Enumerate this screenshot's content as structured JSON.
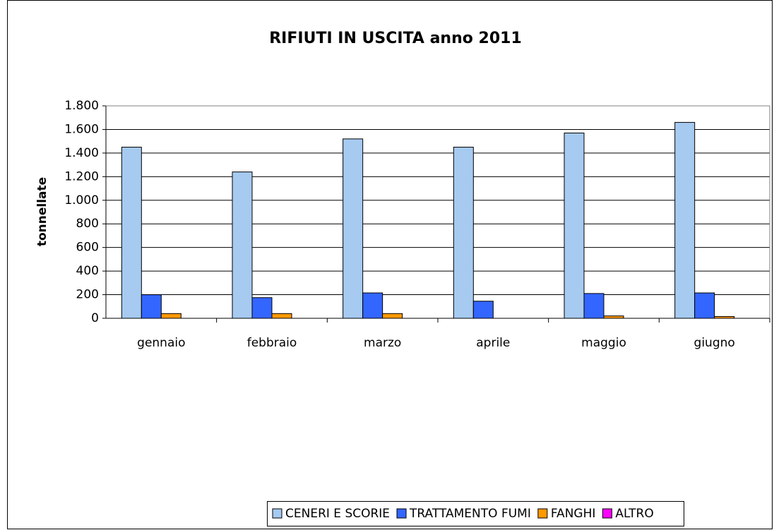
{
  "chart_data": {
    "type": "bar",
    "title": "RIFIUTI IN USCITA anno 2011",
    "y_label": "tonnellate",
    "categories": [
      "gennaio",
      "febbraio",
      "marzo",
      "aprile",
      "maggio",
      "giugno"
    ],
    "series": [
      {
        "name": "CENERI E SCORIE",
        "color": "#a6caf0",
        "values": [
          1450,
          1240,
          1520,
          1450,
          1570,
          1660
        ]
      },
      {
        "name": "TRATTAMENTO FUMI",
        "color": "#3366ff",
        "values": [
          200,
          175,
          215,
          145,
          210,
          215
        ]
      },
      {
        "name": "FANGHI",
        "color": "#ff9900",
        "values": [
          40,
          40,
          40,
          0,
          20,
          15
        ]
      },
      {
        "name": "ALTRO",
        "color": "#ff00ff",
        "values": [
          0,
          0,
          0,
          0,
          0,
          0
        ]
      }
    ],
    "ylim": [
      0,
      1800
    ],
    "yticks": [
      0,
      200,
      400,
      600,
      800,
      {
        "value": 1000,
        "label": "1.000"
      },
      {
        "value": 1200,
        "label": "1.200"
      },
      {
        "value": 1400,
        "label": "1.400"
      },
      {
        "value": 1600,
        "label": "1.600"
      },
      {
        "value": 1800,
        "label": "1.800"
      }
    ],
    "grid": true,
    "legend": "bottom"
  }
}
